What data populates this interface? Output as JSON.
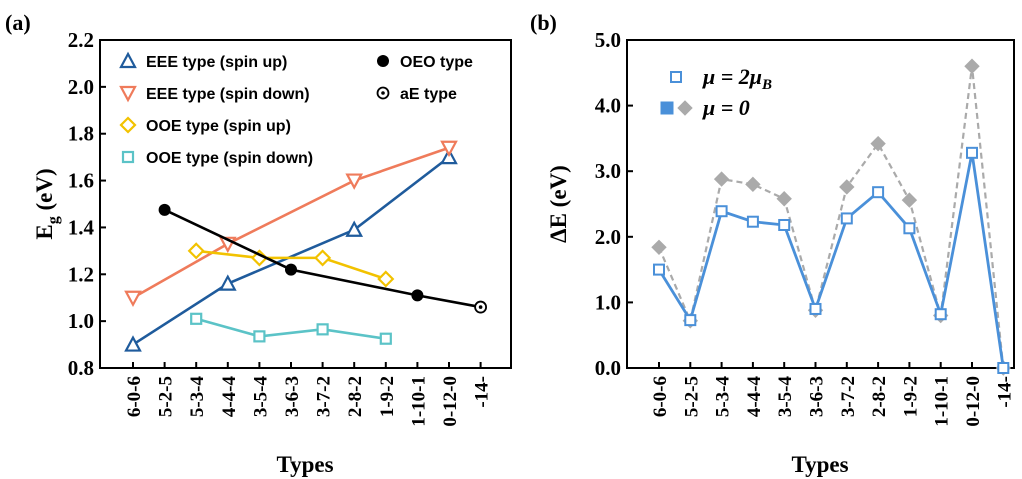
{
  "chart_data": [
    {
      "panel": "(a)",
      "type": "line",
      "ylabel_main": "E",
      "ylabel_sub": "g",
      "ylabel_suffix": " (eV)",
      "xlabel": "Types",
      "ylim": [
        0.8,
        2.2
      ],
      "yticks": [
        "0.8",
        "1.0",
        "1.2",
        "1.4",
        "1.6",
        "1.8",
        "2.0",
        "2.2"
      ],
      "categories": [
        "6-0-6",
        "5-2-5",
        "5-3-4",
        "4-4-4",
        "3-5-4",
        "3-6-3",
        "3-7-2",
        "2-8-2",
        "1-9-2",
        "1-10-1",
        "0-12-0",
        "-14-"
      ],
      "series": [
        {
          "name": "EEE type (spin up)",
          "color": "#1f5b9c",
          "marker": "triangle-up",
          "x": [
            "6-0-6",
            "4-4-4",
            "2-8-2",
            "0-12-0"
          ],
          "y": [
            0.9,
            1.16,
            1.39,
            1.7
          ]
        },
        {
          "name": "EEE type (spin down)",
          "color": "#ef7b5b",
          "marker": "triangle-down",
          "x": [
            "6-0-6",
            "4-4-4",
            "2-8-2",
            "0-12-0"
          ],
          "y": [
            1.1,
            1.33,
            1.6,
            1.74
          ]
        },
        {
          "name": "OOE type (spin up)",
          "color": "#f2c200",
          "marker": "diamond",
          "x": [
            "5-3-4",
            "3-5-4",
            "3-7-2",
            "1-9-2"
          ],
          "y": [
            1.3,
            1.27,
            1.27,
            1.18
          ]
        },
        {
          "name": "OOE type (spin down)",
          "color": "#5bc3c7",
          "marker": "square",
          "x": [
            "5-3-4",
            "3-5-4",
            "3-7-2",
            "1-9-2"
          ],
          "y": [
            1.01,
            0.935,
            0.965,
            0.925
          ]
        },
        {
          "name": "OEO type",
          "color": "#000000",
          "marker": "circle-filled",
          "x": [
            "5-2-5",
            "3-6-3",
            "1-10-1",
            "-14-"
          ],
          "y": [
            1.475,
            1.22,
            1.11,
            1.06
          ]
        },
        {
          "name": "aE type",
          "color": "#000000",
          "marker": "circle-dot",
          "x": [
            "-14-"
          ],
          "y": [
            1.06
          ]
        }
      ]
    },
    {
      "panel": "(b)",
      "type": "line",
      "ylabel": "ΔE (eV)",
      "xlabel": "Types",
      "ylim": [
        0.0,
        5.0
      ],
      "yticks": [
        "0.0",
        "1.0",
        "2.0",
        "3.0",
        "4.0",
        "5.0"
      ],
      "categories": [
        "6-0-6",
        "5-2-5",
        "5-3-4",
        "4-4-4",
        "3-5-4",
        "3-6-3",
        "3-7-2",
        "2-8-2",
        "1-9-2",
        "1-10-1",
        "0-12-0",
        "-14-"
      ],
      "series": [
        {
          "name": "μ = 2μB",
          "name_display": [
            "μ",
            " = 2",
            "μ",
            "B"
          ],
          "color": "#4a90d9",
          "marker": "square-open",
          "style": "solid",
          "y": [
            1.5,
            0.73,
            2.39,
            2.23,
            2.18,
            0.9,
            2.28,
            2.68,
            2.13,
            0.82,
            3.28,
            0.0
          ]
        },
        {
          "name": "μ = 0",
          "name_display": [
            "μ",
            " = 0"
          ],
          "color": "#aaaaaa",
          "marker": "diamond-filled",
          "style": "dashed",
          "legend_patch_color": "#4a90d9",
          "y": [
            1.84,
            0.72,
            2.88,
            2.8,
            2.58,
            0.88,
            2.76,
            3.42,
            2.56,
            0.8,
            4.6,
            0.0
          ]
        }
      ]
    }
  ]
}
